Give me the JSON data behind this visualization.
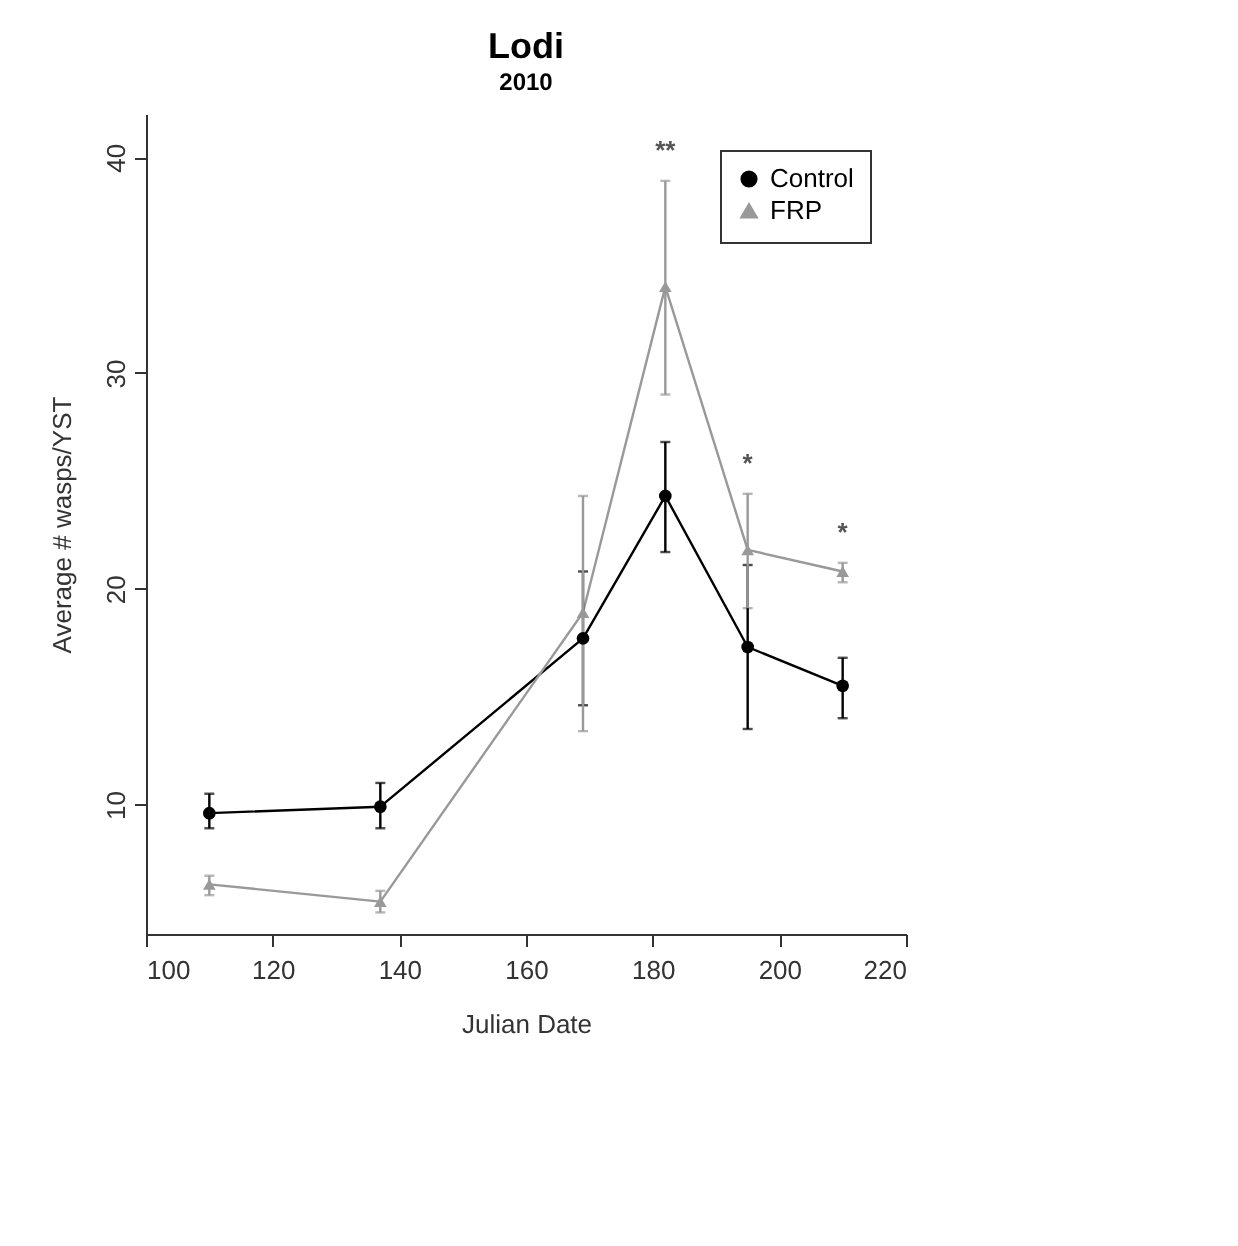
{
  "chart_data": {
    "type": "line",
    "title": "Lodi",
    "subtitle": "2010",
    "xlabel": "Julian Date",
    "ylabel": "Average # wasps/YST",
    "x": [
      110,
      137,
      169,
      182,
      195,
      210
    ],
    "series": [
      {
        "name": "Control",
        "color": "#000000",
        "marker": "circle",
        "values": [
          9.6,
          9.9,
          17.7,
          24.3,
          17.3,
          15.5
        ],
        "errors": [
          [
            8.9,
            10.5
          ],
          [
            8.9,
            11.0
          ],
          [
            14.6,
            20.8
          ],
          [
            21.7,
            26.8
          ],
          [
            13.5,
            21.1
          ],
          [
            14.0,
            16.8
          ]
        ]
      },
      {
        "name": "FRP",
        "color": "#999999",
        "marker": "triangle",
        "values": [
          6.3,
          5.5,
          18.9,
          34.0,
          21.8,
          20.8
        ],
        "errors": [
          [
            5.8,
            6.7
          ],
          [
            5.0,
            6.0
          ],
          [
            13.4,
            24.3
          ],
          [
            29.0,
            38.9
          ],
          [
            19.1,
            24.4
          ],
          [
            20.3,
            21.2
          ]
        ]
      }
    ],
    "annotations": [
      "**",
      "*",
      "*"
    ],
    "xlim": [
      100,
      220
    ],
    "xticks": [
      100,
      120,
      140,
      160,
      180,
      200,
      220
    ],
    "ylim": [
      4,
      42
    ],
    "yticks": [
      10,
      20,
      30,
      40
    ],
    "legend": "top right",
    "grid": false
  }
}
